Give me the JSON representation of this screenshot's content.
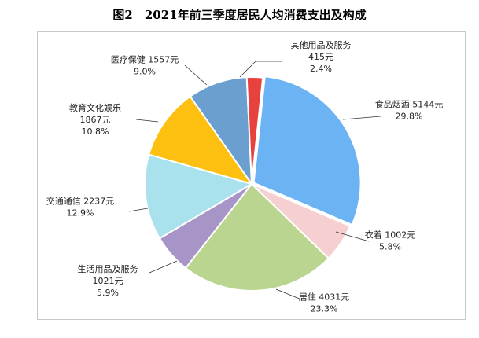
{
  "title": "图2　2021年前三季度居民人均消费支出及构成",
  "chart_data": {
    "type": "pie",
    "title": "图2　2021年前三季度居民人均消费支出及构成",
    "slices": [
      {
        "name": "食品烟酒",
        "value_text": "5144元",
        "value": 5144,
        "percent": 29.8,
        "percent_text": "29.8%",
        "color": "#6cb3f4"
      },
      {
        "name": "衣着",
        "value_text": "1002元",
        "value": 1002,
        "percent": 5.8,
        "percent_text": "5.8%",
        "color": "#f6cfd1"
      },
      {
        "name": "居住",
        "value_text": "4031元",
        "value": 4031,
        "percent": 23.3,
        "percent_text": "23.3%",
        "color": "#b9d58f"
      },
      {
        "name": "生活用品及服务",
        "value_text": "1021元",
        "value": 1021,
        "percent": 5.9,
        "percent_text": "5.9%",
        "color": "#a795c8"
      },
      {
        "name": "交通通信",
        "value_text": "2237元",
        "value": 2237,
        "percent": 12.9,
        "percent_text": "12.9%",
        "color": "#a9e2ec"
      },
      {
        "name": "教育文化娱乐",
        "value_text": "1867元",
        "value": 1867,
        "percent": 10.8,
        "percent_text": "10.8%",
        "color": "#fdbf10"
      },
      {
        "name": "医疗保健",
        "value_text": "1557元",
        "value": 1557,
        "percent": 9.0,
        "percent_text": "9.0%",
        "color": "#6a9fd0"
      },
      {
        "name": "其他用品及服务",
        "value_text": "415元",
        "value": 415,
        "percent": 2.4,
        "percent_text": "2.4%",
        "color": "#e8423e"
      }
    ]
  }
}
